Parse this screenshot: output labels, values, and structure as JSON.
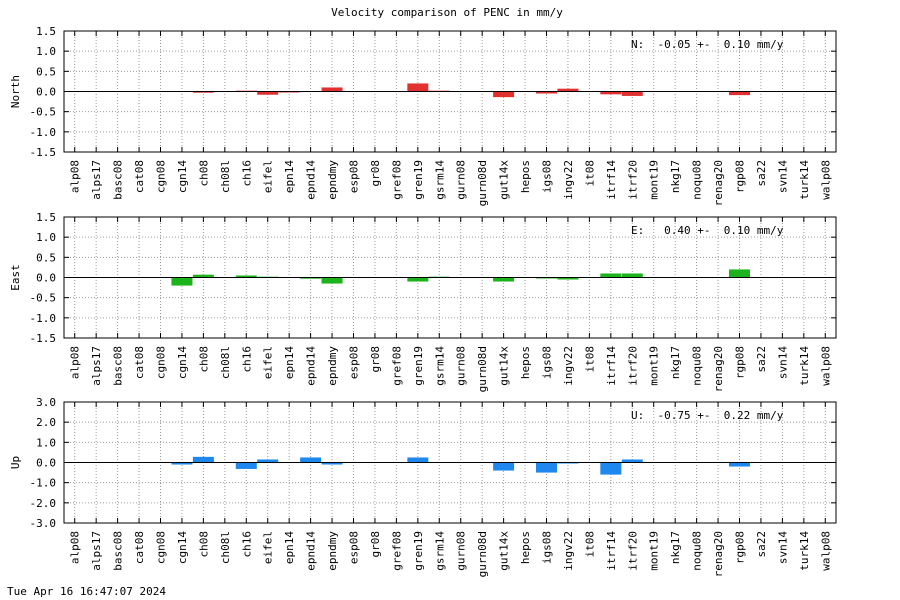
{
  "footer": {
    "timestamp": "Tue Apr 16 16:47:07 2024"
  },
  "chart_data": {
    "type": "bar",
    "title": "Velocity comparison of PENC in mm/y",
    "categories": [
      "alp08",
      "alps17",
      "basc08",
      "cat08",
      "cgn08",
      "cgn14",
      "ch08",
      "ch08l",
      "ch16",
      "eifel",
      "epn14",
      "epnd14",
      "epndmy",
      "esp08",
      "gr08",
      "gref08",
      "gren19",
      "gsrm14",
      "gurn08",
      "gurn08d",
      "gut14x",
      "hepos",
      "igs08",
      "ingv22",
      "it08",
      "itrf14",
      "itrf20",
      "mont19",
      "nkg17",
      "noqu08",
      "renag20",
      "rgp08",
      "sa22",
      "svn14",
      "turk14",
      "walp08"
    ],
    "grid": true,
    "panels": [
      {
        "ylabel": "North",
        "ylim": [
          -1.5,
          1.5
        ],
        "yticks": [
          "1.5",
          "1.0",
          "0.5",
          "0.0",
          "-0.5",
          "-1.0",
          "-1.5"
        ],
        "color": "#e03030",
        "annotation": "N:  -0.05 +-  0.10 mm/y",
        "values": [
          null,
          null,
          null,
          null,
          null,
          null,
          -0.03,
          null,
          0.02,
          -0.08,
          -0.02,
          null,
          0.1,
          null,
          null,
          null,
          0.2,
          0.02,
          null,
          null,
          -0.14,
          null,
          -0.05,
          0.07,
          null,
          -0.07,
          -0.11,
          null,
          null,
          null,
          null,
          -0.09,
          null,
          null,
          null,
          null
        ]
      },
      {
        "ylabel": "East",
        "ylim": [
          -1.5,
          1.5
        ],
        "yticks": [
          "1.5",
          "1.0",
          "0.5",
          "0.0",
          "-0.5",
          "-1.0",
          "-1.5"
        ],
        "color": "#1db31d",
        "annotation": "E:   0.40 +-  0.10 mm/y",
        "values": [
          null,
          null,
          null,
          null,
          null,
          -0.2,
          0.07,
          null,
          0.05,
          0.02,
          null,
          -0.03,
          -0.15,
          null,
          null,
          null,
          -0.1,
          0.02,
          null,
          null,
          -0.1,
          null,
          -0.02,
          -0.05,
          null,
          0.1,
          0.1,
          null,
          null,
          null,
          null,
          0.2,
          null,
          null,
          null,
          null
        ]
      },
      {
        "ylabel": "Up",
        "ylim": [
          -3.0,
          3.0
        ],
        "yticks": [
          "3.0",
          "2.0",
          "1.0",
          "0.0",
          "-1.0",
          "-2.0",
          "-3.0"
        ],
        "color": "#1e88ee",
        "annotation": "U:  -0.75 +-  0.22 mm/y",
        "values": [
          null,
          null,
          null,
          null,
          null,
          -0.1,
          0.28,
          null,
          -0.32,
          0.15,
          null,
          0.25,
          -0.1,
          null,
          null,
          null,
          0.25,
          null,
          null,
          null,
          -0.4,
          null,
          -0.5,
          -0.05,
          null,
          -0.6,
          0.15,
          null,
          null,
          null,
          null,
          -0.2,
          null,
          null,
          null,
          null
        ]
      }
    ]
  }
}
